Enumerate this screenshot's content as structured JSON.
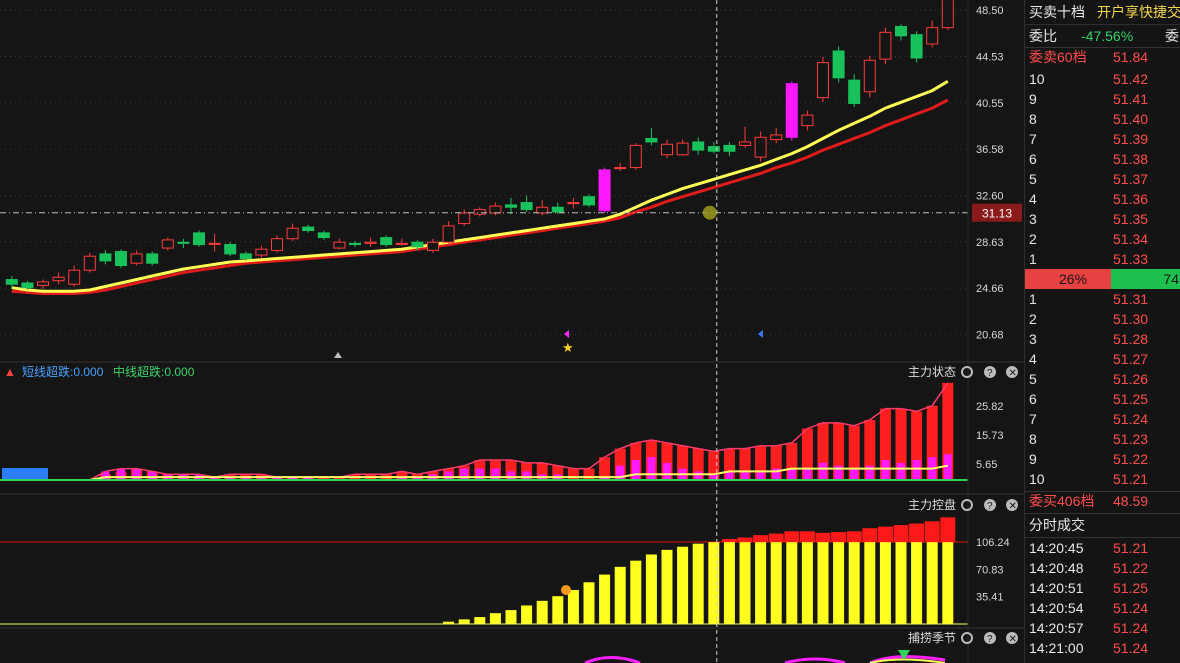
{
  "colors": {
    "background": "#151515",
    "up": "#ff3b3b",
    "down": "#19c15a",
    "ma_fast": "#ffff55",
    "ma_slow": "#e01b1b",
    "magenta": "#ff19ff",
    "yellow_bar": "#ffff1f",
    "grid": "#3a3a3a"
  },
  "panel_titles": {
    "indicator1_legend_short": "短线超跌:0.000",
    "indicator1_legend_mid": "中线超跌:0.000",
    "indicator1": "主力状态",
    "indicator2": "主力控盘",
    "indicator3": "捕捞季节"
  },
  "chart_data": [
    {
      "type": "candlestick",
      "ylim": [
        18.5,
        49.2
      ],
      "y_ticks": [
        "48.50",
        "44.53",
        "40.55",
        "36.58",
        "32.60",
        "28.63",
        "24.66",
        "20.68"
      ],
      "current_price_label": "31.13",
      "crosshair_index": 45,
      "candles": [
        {
          "o": 25.4,
          "c": 25.0,
          "h": 25.7,
          "l": 24.7
        },
        {
          "o": 25.1,
          "c": 24.7,
          "h": 25.3,
          "l": 24.5
        },
        {
          "o": 24.9,
          "c": 25.2,
          "h": 25.4,
          "l": 24.6
        },
        {
          "o": 25.3,
          "c": 25.6,
          "h": 26.0,
          "l": 25.0
        },
        {
          "o": 25.0,
          "c": 26.2,
          "h": 26.6,
          "l": 24.8
        },
        {
          "o": 26.2,
          "c": 27.4,
          "h": 27.7,
          "l": 26.0
        },
        {
          "o": 27.6,
          "c": 27.0,
          "h": 27.9,
          "l": 26.7
        },
        {
          "o": 27.8,
          "c": 26.6,
          "h": 28.0,
          "l": 26.4
        },
        {
          "o": 26.8,
          "c": 27.6,
          "h": 27.9,
          "l": 26.6
        },
        {
          "o": 27.6,
          "c": 26.8,
          "h": 27.8,
          "l": 26.6
        },
        {
          "o": 28.1,
          "c": 28.8,
          "h": 29.0,
          "l": 27.9
        },
        {
          "o": 28.6,
          "c": 28.5,
          "h": 28.9,
          "l": 28.1
        },
        {
          "o": 29.4,
          "c": 28.4,
          "h": 29.6,
          "l": 28.2
        },
        {
          "o": 28.5,
          "c": 28.5,
          "h": 29.3,
          "l": 27.8
        },
        {
          "o": 28.4,
          "c": 27.6,
          "h": 28.6,
          "l": 27.4
        },
        {
          "o": 27.6,
          "c": 27.2,
          "h": 27.8,
          "l": 27.0
        },
        {
          "o": 27.5,
          "c": 28.0,
          "h": 28.3,
          "l": 27.2
        },
        {
          "o": 27.9,
          "c": 28.9,
          "h": 29.2,
          "l": 27.7
        },
        {
          "o": 28.9,
          "c": 29.8,
          "h": 30.2,
          "l": 28.7
        },
        {
          "o": 29.9,
          "c": 29.6,
          "h": 30.1,
          "l": 29.4
        },
        {
          "o": 29.4,
          "c": 29.0,
          "h": 29.6,
          "l": 28.8
        },
        {
          "o": 28.1,
          "c": 28.6,
          "h": 28.9,
          "l": 28.0
        },
        {
          "o": 28.5,
          "c": 28.4,
          "h": 28.7,
          "l": 28.2
        },
        {
          "o": 28.5,
          "c": 28.6,
          "h": 29.0,
          "l": 28.2
        },
        {
          "o": 29.0,
          "c": 28.4,
          "h": 29.2,
          "l": 28.2
        },
        {
          "o": 28.5,
          "c": 28.5,
          "h": 28.9,
          "l": 28.3
        },
        {
          "o": 28.6,
          "c": 28.2,
          "h": 28.8,
          "l": 27.9
        },
        {
          "o": 27.9,
          "c": 28.6,
          "h": 28.9,
          "l": 27.7
        },
        {
          "o": 28.6,
          "c": 30.0,
          "h": 30.4,
          "l": 28.4
        },
        {
          "o": 30.2,
          "c": 31.1,
          "h": 31.4,
          "l": 30.0
        },
        {
          "o": 31.0,
          "c": 31.4,
          "h": 31.6,
          "l": 30.8
        },
        {
          "o": 31.1,
          "c": 31.7,
          "h": 32.0,
          "l": 30.9
        },
        {
          "o": 31.8,
          "c": 31.6,
          "h": 32.4,
          "l": 31.0
        },
        {
          "o": 32.0,
          "c": 31.4,
          "h": 32.6,
          "l": 31.2
        },
        {
          "o": 31.1,
          "c": 31.6,
          "h": 32.2,
          "l": 30.9
        },
        {
          "o": 31.6,
          "c": 31.2,
          "h": 32.0,
          "l": 31.0
        },
        {
          "o": 32.0,
          "c": 32.0,
          "h": 32.4,
          "l": 31.5
        },
        {
          "o": 32.5,
          "c": 31.8,
          "h": 32.7,
          "l": 31.6
        },
        {
          "o": 31.3,
          "c": 34.8,
          "h": 35.0,
          "l": 31.1
        },
        {
          "o": 35.0,
          "c": 35.0,
          "h": 35.4,
          "l": 34.7
        },
        {
          "o": 35.0,
          "c": 36.9,
          "h": 37.1,
          "l": 34.8
        },
        {
          "o": 37.5,
          "c": 37.2,
          "h": 38.4,
          "l": 36.9
        },
        {
          "o": 36.1,
          "c": 37.0,
          "h": 37.4,
          "l": 35.8
        },
        {
          "o": 36.1,
          "c": 37.1,
          "h": 37.4,
          "l": 36.0
        },
        {
          "o": 37.2,
          "c": 36.5,
          "h": 37.6,
          "l": 36.1
        },
        {
          "o": 36.8,
          "c": 36.4,
          "h": 37.2,
          "l": 36.2
        },
        {
          "o": 36.9,
          "c": 36.4,
          "h": 37.2,
          "l": 36.0
        },
        {
          "o": 36.9,
          "c": 37.2,
          "h": 38.5,
          "l": 36.7
        },
        {
          "o": 35.9,
          "c": 37.6,
          "h": 38.1,
          "l": 35.5
        },
        {
          "o": 37.4,
          "c": 37.8,
          "h": 38.4,
          "l": 37.1
        },
        {
          "o": 37.6,
          "c": 42.2,
          "h": 42.4,
          "l": 37.3
        },
        {
          "o": 38.6,
          "c": 39.5,
          "h": 39.9,
          "l": 38.2
        },
        {
          "o": 41.0,
          "c": 44.0,
          "h": 44.5,
          "l": 40.6
        },
        {
          "o": 45.0,
          "c": 42.7,
          "h": 45.4,
          "l": 42.3
        },
        {
          "o": 42.5,
          "c": 40.5,
          "h": 43.0,
          "l": 40.2
        },
        {
          "o": 41.5,
          "c": 44.2,
          "h": 44.6,
          "l": 41.0
        },
        {
          "o": 44.3,
          "c": 46.6,
          "h": 47.0,
          "l": 43.9
        },
        {
          "o": 47.1,
          "c": 46.3,
          "h": 47.3,
          "l": 45.9
        },
        {
          "o": 46.4,
          "c": 44.4,
          "h": 46.7,
          "l": 44.0
        },
        {
          "o": 45.6,
          "c": 47.0,
          "h": 47.6,
          "l": 45.3
        },
        {
          "o": 47.0,
          "c": 49.6,
          "h": 50.2,
          "l": 46.8
        }
      ],
      "ma_fast": [
        24.7,
        24.5,
        24.4,
        24.4,
        24.4,
        24.5,
        24.8,
        25.1,
        25.4,
        25.7,
        26.0,
        26.3,
        26.5,
        26.7,
        26.9,
        27.0,
        27.1,
        27.2,
        27.3,
        27.4,
        27.5,
        27.6,
        27.7,
        27.8,
        27.9,
        28.0,
        28.2,
        28.4,
        28.6,
        28.8,
        29.0,
        29.2,
        29.4,
        29.6,
        29.8,
        30.0,
        30.2,
        30.4,
        30.6,
        31.0,
        31.6,
        32.2,
        32.7,
        33.2,
        33.6,
        34.0,
        34.4,
        34.8,
        35.2,
        35.7,
        36.2,
        36.8,
        37.5,
        38.2,
        38.8,
        39.4,
        40.1,
        40.6,
        41.1,
        41.6,
        42.4
      ],
      "ma_slow": [
        24.4,
        24.3,
        24.2,
        24.2,
        24.2,
        24.3,
        24.5,
        24.8,
        25.1,
        25.4,
        25.7,
        26.0,
        26.2,
        26.4,
        26.6,
        26.8,
        26.9,
        27.0,
        27.1,
        27.2,
        27.3,
        27.4,
        27.5,
        27.6,
        27.7,
        27.8,
        28.0,
        28.2,
        28.4,
        28.6,
        28.8,
        29.0,
        29.2,
        29.4,
        29.6,
        29.8,
        30.0,
        30.2,
        30.4,
        30.7,
        31.2,
        31.6,
        32.1,
        32.5,
        32.9,
        33.3,
        33.7,
        34.1,
        34.5,
        35.0,
        35.4,
        35.9,
        36.5,
        37.0,
        37.5,
        38.0,
        38.6,
        39.1,
        39.6,
        40.1,
        40.8
      ]
    },
    {
      "type": "bar",
      "y_ticks": [
        "25.82",
        "15.73",
        "5.65"
      ],
      "ylim": [
        0,
        35
      ],
      "red_bars": [
        0,
        0,
        0,
        0,
        0,
        0,
        2,
        3,
        4,
        3,
        2,
        2,
        1,
        1,
        2,
        2,
        2,
        1,
        1,
        1,
        1,
        1,
        2,
        2,
        2,
        3,
        2,
        3,
        4,
        5,
        7,
        7,
        7,
        6,
        6,
        5,
        4,
        4,
        8,
        11,
        13,
        14,
        13,
        12,
        11,
        10,
        11,
        11,
        12,
        12,
        13,
        18,
        20,
        20,
        19,
        21,
        25,
        25,
        24,
        26,
        34
      ],
      "magenta_bars": [
        0,
        0,
        0,
        0,
        0,
        0,
        3,
        4,
        4,
        3,
        2,
        2,
        2,
        1,
        1,
        1,
        1,
        1,
        1,
        1,
        0,
        0,
        0,
        0,
        0,
        1,
        1,
        2,
        3,
        4,
        4,
        4,
        3,
        3,
        2,
        2,
        0,
        0,
        1,
        5,
        7,
        8,
        6,
        4,
        3,
        2,
        3,
        3,
        3,
        4,
        4,
        4,
        6,
        5,
        4,
        5,
        7,
        6,
        7,
        8,
        9
      ],
      "yellow_line": [
        0,
        0,
        0,
        0,
        0,
        0,
        1,
        1,
        1,
        1,
        1,
        1,
        1,
        1,
        1,
        1,
        1,
        1,
        1,
        1,
        1,
        1,
        1,
        1,
        1,
        1,
        1,
        1,
        1,
        1,
        1,
        1,
        1,
        1,
        1,
        1,
        1,
        1,
        1,
        1,
        2,
        2,
        2,
        2,
        2,
        2,
        3,
        3,
        3,
        3,
        4,
        4,
        4,
        4,
        4,
        4,
        4,
        4,
        4,
        4,
        5
      ]
    },
    {
      "type": "bar",
      "y_ticks": [
        "106.24",
        "70.83",
        "35.41"
      ],
      "ylim": [
        0,
        145
      ],
      "yellow_bars": [
        0,
        0,
        0,
        0,
        0,
        0,
        0,
        0,
        0,
        0,
        0,
        0,
        0,
        0,
        0,
        0,
        0,
        0,
        0,
        0,
        0,
        0,
        0,
        0,
        0,
        0,
        0,
        0,
        3,
        6,
        9,
        14,
        18,
        24,
        30,
        36,
        44,
        54,
        64,
        74,
        82,
        90,
        96,
        100,
        104,
        106,
        106,
        106,
        106,
        106,
        106,
        106,
        106,
        106,
        106,
        106,
        106,
        106,
        106,
        106,
        106
      ],
      "red_tops": [
        0,
        0,
        0,
        0,
        0,
        0,
        0,
        0,
        0,
        0,
        0,
        0,
        0,
        0,
        0,
        0,
        0,
        0,
        0,
        0,
        0,
        0,
        0,
        0,
        0,
        0,
        0,
        0,
        0,
        0,
        0,
        0,
        0,
        0,
        0,
        0,
        0,
        0,
        0,
        0,
        0,
        0,
        0,
        0,
        0,
        106,
        110,
        112,
        115,
        117,
        120,
        120,
        118,
        119,
        120,
        124,
        126,
        128,
        130,
        133,
        138
      ]
    }
  ],
  "side": {
    "tab1": "买卖十档",
    "tab2": "开户享快捷交",
    "ratio_label": "委比",
    "ratio_value": "-47.56%",
    "ratio_right": "委",
    "sell_header": "委卖60档",
    "sell_header_price": "51.84",
    "sells": [
      {
        "lvl": "10",
        "price": "51.42"
      },
      {
        "lvl": "9",
        "price": "51.41"
      },
      {
        "lvl": "8",
        "price": "51.40"
      },
      {
        "lvl": "7",
        "price": "51.39"
      },
      {
        "lvl": "6",
        "price": "51.38"
      },
      {
        "lvl": "5",
        "price": "51.37"
      },
      {
        "lvl": "4",
        "price": "51.36"
      },
      {
        "lvl": "3",
        "price": "51.35"
      },
      {
        "lvl": "2",
        "price": "51.34"
      },
      {
        "lvl": "1",
        "price": "51.33"
      }
    ],
    "buy_ratio": "26%",
    "sell_ratio": "74",
    "buy_ratio_fraction": 0.26,
    "buys": [
      {
        "lvl": "1",
        "price": "51.31"
      },
      {
        "lvl": "2",
        "price": "51.30"
      },
      {
        "lvl": "3",
        "price": "51.28"
      },
      {
        "lvl": "4",
        "price": "51.27"
      },
      {
        "lvl": "5",
        "price": "51.26"
      },
      {
        "lvl": "6",
        "price": "51.25"
      },
      {
        "lvl": "7",
        "price": "51.24"
      },
      {
        "lvl": "8",
        "price": "51.23"
      },
      {
        "lvl": "9",
        "price": "51.22"
      },
      {
        "lvl": "10",
        "price": "51.21"
      }
    ],
    "buy_header": "委买406档",
    "buy_header_price": "48.59",
    "trades_title": "分时成交",
    "trades": [
      {
        "time": "14:20:45",
        "price": "51.21"
      },
      {
        "time": "14:20:48",
        "price": "51.22"
      },
      {
        "time": "14:20:51",
        "price": "51.25"
      },
      {
        "time": "14:20:54",
        "price": "51.24"
      },
      {
        "time": "14:20:57",
        "price": "51.24"
      },
      {
        "time": "14:21:00",
        "price": "51.24"
      }
    ]
  }
}
